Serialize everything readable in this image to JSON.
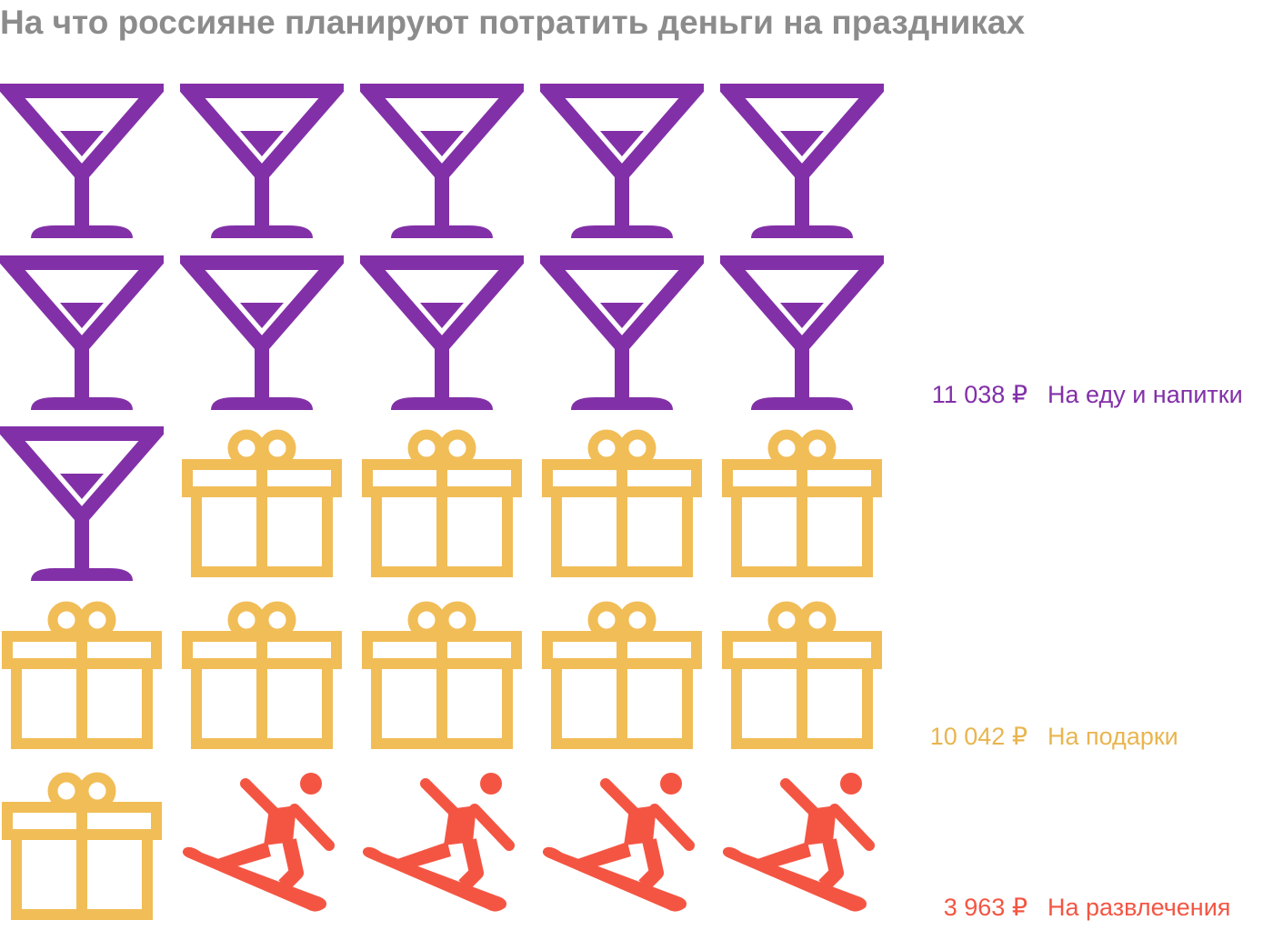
{
  "chart_data": {
    "type": "pictogram",
    "title": "На что россияне планируют потратить деньги на праздниках",
    "icons_per_row": 5,
    "series": [
      {
        "name": "На еду и напитки",
        "value_label": "11 038 ₽",
        "value": 11038,
        "icon_count": 11,
        "icon": "martini-glass-icon",
        "color": "#8230a8"
      },
      {
        "name": "На подарки",
        "value_label": "10 042 ₽",
        "value": 10042,
        "icon_count": 10,
        "icon": "gift-box-icon",
        "color": "#f1bd57"
      },
      {
        "name": "На развлечения",
        "value_label": "3 963 ₽",
        "value": 3963,
        "icon_count": 4,
        "icon": "snowboarder-icon",
        "color": "#f45543"
      }
    ]
  }
}
